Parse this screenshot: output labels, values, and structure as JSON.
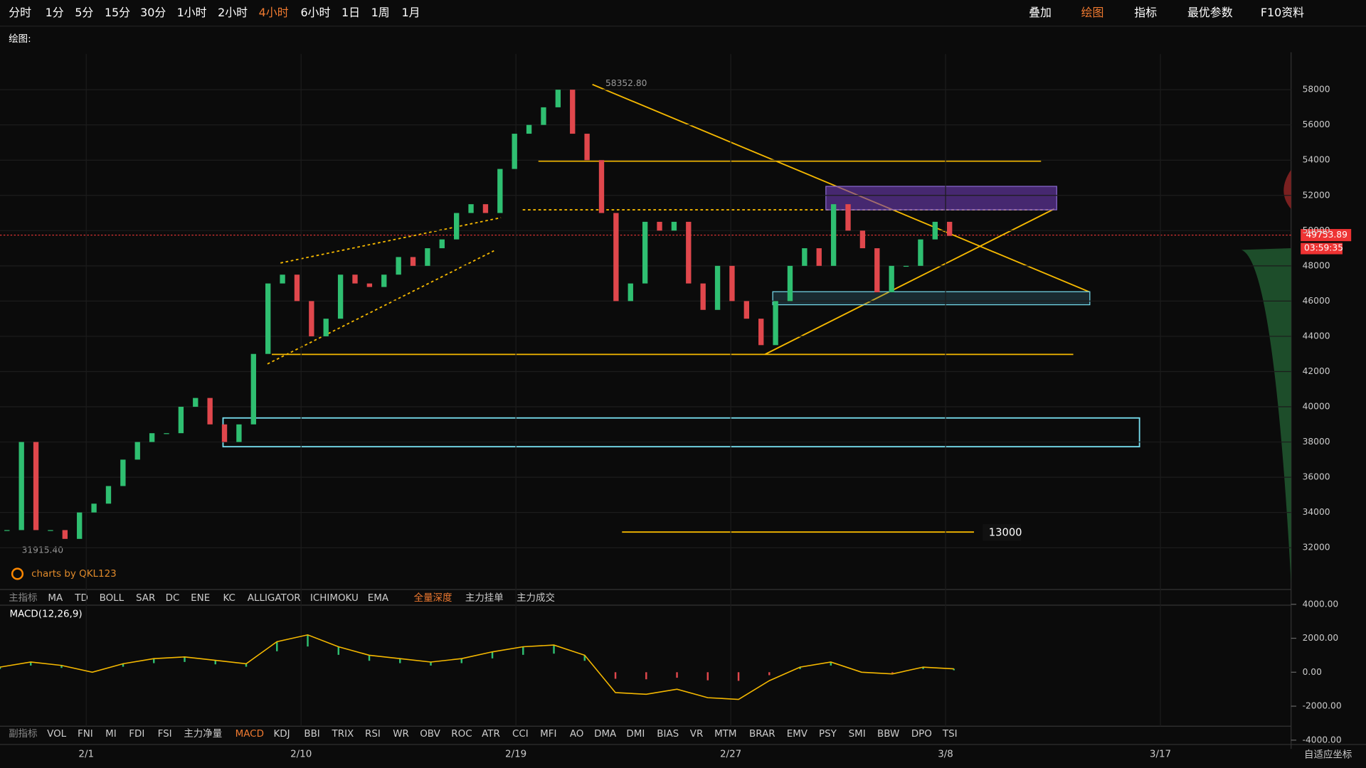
{
  "toolbar": {
    "periods": [
      "分时",
      "1分",
      "5分",
      "15分",
      "30分",
      "1小时",
      "2小时",
      "4小时",
      "6小时",
      "1日",
      "1周",
      "1月"
    ],
    "active_period": "4小时",
    "right": [
      "叠加",
      "绘图",
      "指标",
      "最优参数",
      "F10资料"
    ],
    "draw_label": "绘图:"
  },
  "main_indicators": [
    "主指标",
    "MA",
    "TD",
    "BOLL",
    "SAR",
    "DC",
    "ENE",
    "KC",
    "ALLIGATOR",
    "ICHIMOKU",
    "EMA",
    "全量深度",
    "主力挂单",
    "主力成交"
  ],
  "sub_indicators": [
    "副指标",
    "VOL",
    "FNI",
    "MI",
    "FDI",
    "FSI",
    "主力净量",
    "MACD",
    "KDJ",
    "BBI",
    "TRIX",
    "RSI",
    "WR",
    "OBV",
    "ROC",
    "ATR",
    "CCI",
    "MFI",
    "AO",
    "DMA",
    "DMI",
    "BIAS",
    "VR",
    "MTM",
    "BRAR",
    "EMV",
    "PSY",
    "SMI",
    "BBW",
    "DPO",
    "TSI"
  ],
  "chart_data": {
    "type": "candlestick",
    "x": [
      "2/1",
      "2/10",
      "2/19",
      "2/27",
      "3/8",
      "3/17"
    ],
    "closes": [
      33000,
      38000,
      33000,
      33000,
      32500,
      34000,
      34500,
      35500,
      37000,
      38000,
      38500,
      38500,
      40000,
      40500,
      39000,
      38000,
      39000,
      43000,
      47000,
      47500,
      46000,
      44000,
      45000,
      47500,
      47000,
      46800,
      47500,
      48500,
      48000,
      49000,
      49500,
      51000,
      51500,
      51000,
      53500,
      55500,
      56000,
      57000,
      58000,
      55500,
      54000,
      51000,
      46000,
      47000,
      50500,
      50000,
      50500,
      47000,
      45500,
      48000,
      46000,
      45000,
      43500,
      46000,
      48000,
      49000,
      48000,
      51500,
      50000,
      49000,
      46500,
      48000,
      48000,
      49500,
      50500,
      49700
    ],
    "ylim": [
      30000,
      59000
    ],
    "yticks": [
      58000,
      56000,
      54000,
      52000,
      50000,
      48000,
      46000,
      44000,
      42000,
      40000,
      38000,
      36000,
      34000,
      32000
    ],
    "high_label": "58352.80",
    "low_label": "31915.40",
    "level_label": "13000",
    "last_price": "49753.89",
    "countdown": "03:59:35",
    "watermark": "charts by QKL123"
  },
  "macd": {
    "title": "MACD(12,26,9)",
    "values": [
      300,
      600,
      400,
      0,
      500,
      800,
      900,
      700,
      500,
      1800,
      2200,
      1500,
      1000,
      800,
      600,
      800,
      1200,
      1500,
      1600,
      1000,
      -1200,
      -1300,
      -1000,
      -1500,
      -1600,
      -500,
      300,
      600,
      0,
      -100,
      300,
      200
    ],
    "ylim": [
      -4000,
      4000
    ],
    "yticks": [
      {
        "value": 4000,
        "label": "4000.00"
      },
      {
        "value": 2000,
        "label": "2000.00"
      },
      {
        "value": 0,
        "label": "0.00"
      },
      {
        "value": -2000,
        "label": "-2000.00"
      },
      {
        "value": -4000,
        "label": "-4000.00"
      }
    ]
  },
  "footer": {
    "adaptive": "自适应坐标"
  }
}
